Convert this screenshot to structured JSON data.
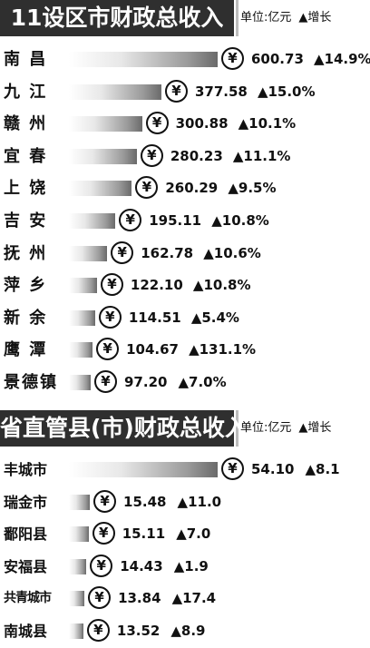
{
  "chart_data": [
    {
      "type": "bar",
      "title": "11设区市财政总收入",
      "unit_label": "单位:亿元",
      "increase_label": "▲增长",
      "currency_symbol": "¥",
      "categories": [
        "南 昌",
        "九 江",
        "赣 州",
        "宜 春",
        "上 饶",
        "吉 安",
        "抚 州",
        "萍 乡",
        "新 余",
        "鹰 潭",
        "景德镇"
      ],
      "values": [
        600.73,
        377.58,
        300.88,
        280.23,
        260.29,
        195.11,
        162.78,
        122.1,
        114.51,
        104.67,
        97.2
      ],
      "value_labels": [
        "600.73",
        "377.58",
        "300.88",
        "280.23",
        "260.29",
        "195.11",
        "162.78",
        "122.10",
        "114.51",
        "104.67",
        "97.20"
      ],
      "growth_labels": [
        "▲14.9%",
        "▲15.0%",
        "▲10.1%",
        "▲11.1%",
        "▲9.5%",
        "▲10.8%",
        "▲10.6%",
        "▲10.8%",
        "▲5.4%",
        "▲131.1%",
        "▲7.0%"
      ]
    },
    {
      "type": "bar",
      "title": "省直管县(市)财政总收入",
      "unit_label": "单位:亿元",
      "increase_label": "▲增长",
      "currency_symbol": "¥",
      "categories": [
        "丰城市",
        "瑞金市",
        "鄱阳县",
        "安福县",
        "共青城市",
        "南城县"
      ],
      "values": [
        54.1,
        15.48,
        15.11,
        14.43,
        13.84,
        13.52
      ],
      "value_labels": [
        "54.10",
        "15.48",
        "15.11",
        "14.43",
        "13.84",
        "13.52"
      ],
      "growth_labels": [
        "▲8.1",
        "▲11.0",
        "▲7.0",
        "▲1.9",
        "▲17.4",
        "▲8.9"
      ]
    }
  ]
}
